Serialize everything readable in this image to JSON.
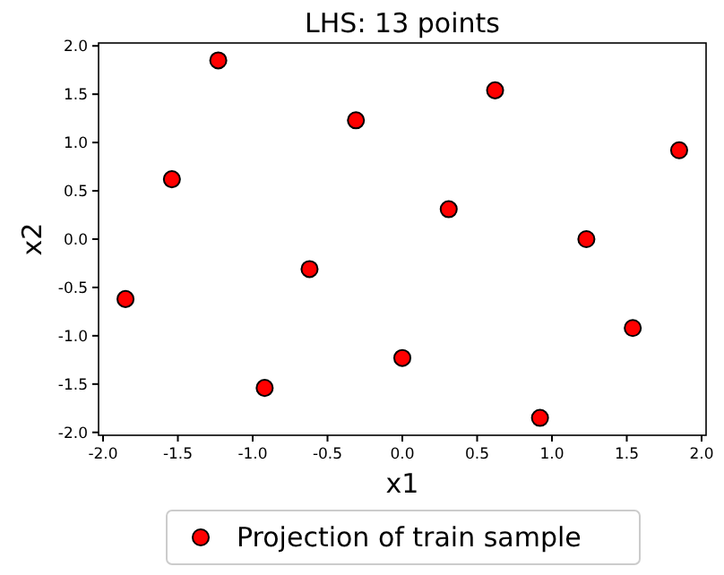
{
  "chart_data": {
    "type": "scatter",
    "title": "LHS: 13 points",
    "xlabel": "x1",
    "ylabel": "x2",
    "x": [
      -1.85,
      -1.54,
      -1.23,
      -0.92,
      -0.62,
      -0.31,
      0,
      0.31,
      0.62,
      0.92,
      1.23,
      1.54,
      1.85
    ],
    "series": [
      {
        "name": "Projection of train sample",
        "color": "#ff0000",
        "values": [
          -0.62,
          0.62,
          1.85,
          -1.54,
          -0.31,
          1.23,
          -1.23,
          0.31,
          1.54,
          -1.85,
          0,
          -0.92,
          0.92
        ]
      }
    ],
    "xlim": [
      -2.03,
      2.03
    ],
    "ylim": [
      -2.03,
      2.03
    ],
    "xticks": [
      {
        "value": -2,
        "label": "-2.0"
      },
      {
        "value": -1.5,
        "label": "-1.5"
      },
      {
        "value": -1,
        "label": "-1.0"
      },
      {
        "value": -0.5,
        "label": "-0.5"
      },
      {
        "value": 0,
        "label": "0.0"
      },
      {
        "value": 0.5,
        "label": "0.5"
      },
      {
        "value": 1,
        "label": "1.0"
      },
      {
        "value": 1.5,
        "label": "1.5"
      },
      {
        "value": 2,
        "label": "2.0"
      }
    ],
    "yticks": [
      {
        "value": -2,
        "label": "-2.0"
      },
      {
        "value": -1.5,
        "label": "-1.5"
      },
      {
        "value": -1,
        "label": "-1.0"
      },
      {
        "value": -0.5,
        "label": "-0.5"
      },
      {
        "value": 0,
        "label": "0.0"
      },
      {
        "value": 0.5,
        "label": "0.5"
      },
      {
        "value": 1,
        "label": "1.0"
      },
      {
        "value": 1.5,
        "label": "1.5"
      },
      {
        "value": 2,
        "label": "2.0"
      }
    ],
    "grid": false,
    "legend": "bottom",
    "marker": "circle"
  }
}
